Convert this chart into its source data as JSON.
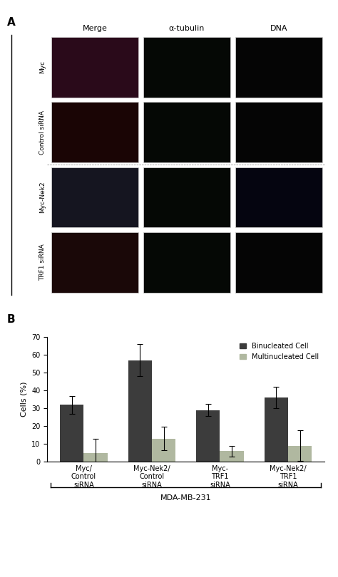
{
  "panel_A_label": "A",
  "panel_B_label": "B",
  "col_headers": [
    "Merge",
    "α-tubulin",
    "DNA"
  ],
  "row_labels": [
    "Myc",
    "Control siRNA",
    "Myc-Nek2",
    "TRF1 siRNA"
  ],
  "outer_label": "MDA-MB-231",
  "bar_categories": [
    "Myc/\nControl\nsiRNA",
    "Myc-Nek2/\nControl\nsiRNA",
    "Myc-\nTRF1\nsiRNA",
    "Myc-Nek2/\nTRF1\nsiRNA"
  ],
  "binucleated_values": [
    32,
    57,
    29,
    36
  ],
  "multinucleated_values": [
    5,
    13,
    6,
    9
  ],
  "binucleated_errors": [
    5,
    9,
    3.5,
    6
  ],
  "multinucleated_errors": [
    8,
    6.5,
    3,
    8.5
  ],
  "bar_color_binucleated": "#3c3c3c",
  "bar_color_multinucleated": "#b0b8a0",
  "ylabel": "Cells (%)",
  "ylim": [
    0,
    70
  ],
  "yticks": [
    0,
    10,
    20,
    30,
    40,
    50,
    60,
    70
  ],
  "xlabel_group": "MDA-MB-231",
  "legend_binucleated": "Binucleated Cell",
  "legend_multinucleated": "Multinucleated Cell",
  "bar_width": 0.35,
  "figure_bg": "#ffffff",
  "font_size_tick": 7,
  "font_size_label": 8,
  "font_size_legend": 7,
  "font_size_panel": 11
}
